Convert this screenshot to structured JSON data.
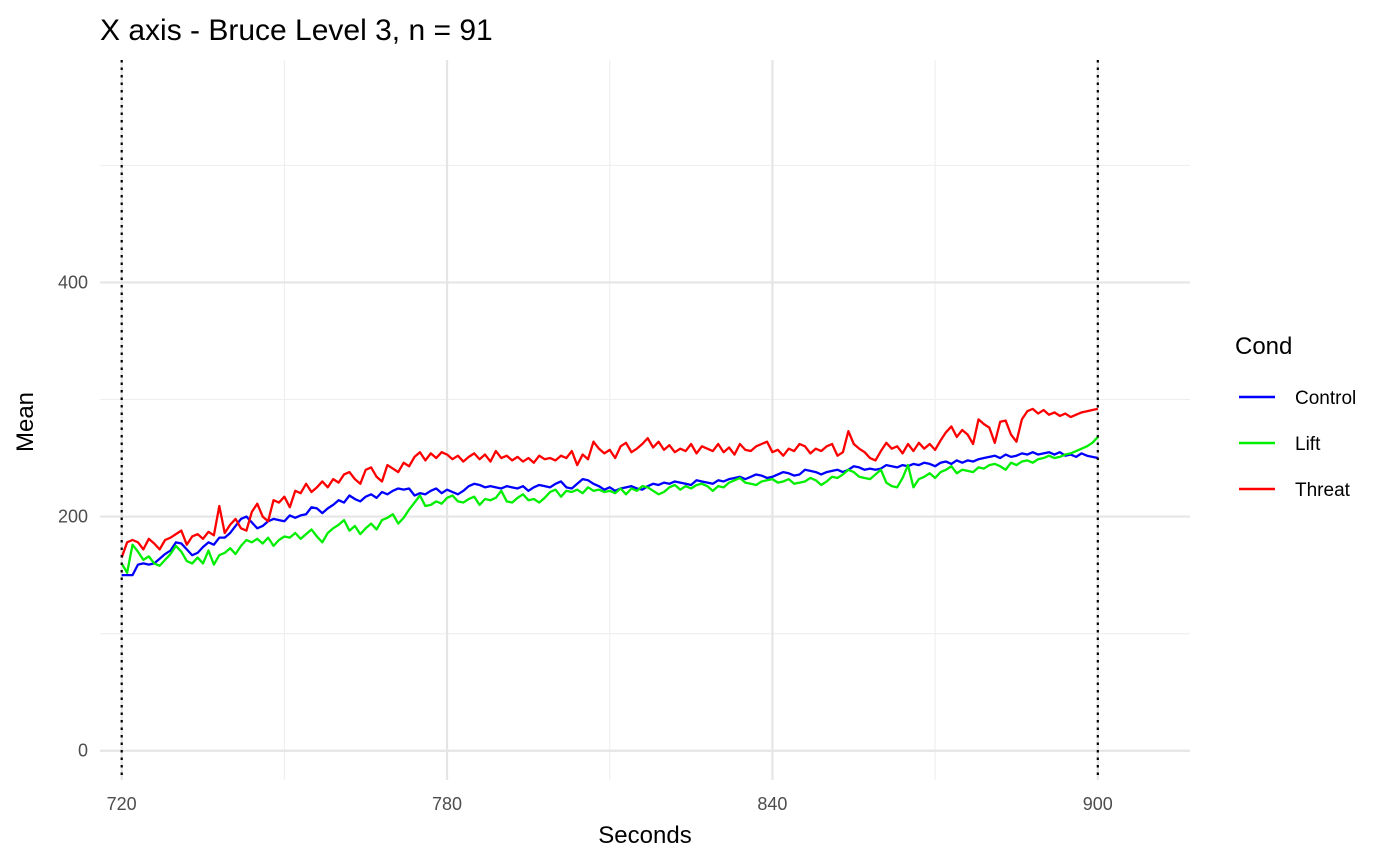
{
  "chart_data": {
    "type": "line",
    "title": "X axis - Bruce Level 3, n =  91",
    "xlabel": "Seconds",
    "ylabel": "Mean",
    "xlim": [
      716,
      917
    ],
    "ylim": [
      -25,
      590
    ],
    "x_ticks": [
      720,
      780,
      840,
      900
    ],
    "x_minor_ticks": [
      750,
      810,
      870
    ],
    "y_ticks": [
      0,
      200,
      400
    ],
    "y_minor_ticks": [
      100,
      300,
      500
    ],
    "grid": true,
    "vertical_reference_lines": [
      720,
      900
    ],
    "legend": {
      "title": "Cond",
      "position": "right"
    },
    "x_start": 720,
    "x_step": 1,
    "series": [
      {
        "name": "Control",
        "color": "#0000ff",
        "values": [
          150,
          150,
          150,
          159,
          160,
          159,
          160,
          164,
          168,
          171,
          178,
          177,
          172,
          167,
          169,
          174,
          178,
          176,
          182,
          182,
          186,
          192,
          198,
          200,
          195,
          190,
          192,
          196,
          198,
          197,
          196,
          201,
          199,
          201,
          202,
          208,
          207,
          203,
          207,
          210,
          214,
          212,
          218,
          215,
          213,
          217,
          219,
          216,
          221,
          219,
          222,
          224,
          223,
          224,
          218,
          220,
          219,
          222,
          224,
          220,
          223,
          221,
          219,
          222,
          226,
          228,
          227,
          225,
          226,
          225,
          224,
          226,
          225,
          224,
          226,
          222,
          225,
          227,
          226,
          225,
          228,
          230,
          225,
          224,
          228,
          232,
          231,
          228,
          226,
          223,
          225,
          222,
          224,
          225,
          226,
          224,
          223,
          226,
          228,
          227,
          229,
          228,
          230,
          229,
          228,
          227,
          231,
          230,
          229,
          228,
          231,
          230,
          232,
          233,
          234,
          232,
          234,
          236,
          235,
          233,
          234,
          236,
          238,
          237,
          235,
          236,
          240,
          239,
          238,
          236,
          238,
          239,
          240,
          238,
          240,
          243,
          242,
          240,
          241,
          240,
          241,
          244,
          243,
          242,
          244,
          243,
          245,
          244,
          246,
          245,
          243,
          246,
          247,
          245,
          248,
          246,
          248,
          247,
          249,
          250,
          251,
          252,
          250,
          253,
          251,
          252,
          254,
          253,
          255,
          253,
          254,
          255,
          253,
          255,
          252,
          253,
          251,
          254,
          252,
          251,
          250
        ]
      },
      {
        "name": "Lift",
        "color": "#00ee00",
        "values": [
          160,
          152,
          176,
          170,
          163,
          166,
          160,
          158,
          163,
          168,
          175,
          170,
          162,
          160,
          165,
          160,
          171,
          159,
          167,
          169,
          173,
          168,
          175,
          180,
          178,
          181,
          177,
          182,
          175,
          180,
          183,
          182,
          186,
          181,
          185,
          189,
          183,
          178,
          186,
          190,
          193,
          197,
          188,
          192,
          185,
          190,
          194,
          189,
          197,
          199,
          202,
          194,
          199,
          206,
          212,
          218,
          209,
          210,
          213,
          211,
          216,
          218,
          213,
          212,
          215,
          217,
          210,
          215,
          214,
          216,
          222,
          213,
          212,
          216,
          219,
          214,
          215,
          212,
          216,
          221,
          223,
          217,
          222,
          221,
          223,
          220,
          225,
          222,
          223,
          221,
          222,
          220,
          224,
          219,
          224,
          222,
          226,
          225,
          222,
          219,
          221,
          225,
          227,
          223,
          226,
          224,
          227,
          228,
          226,
          222,
          226,
          225,
          229,
          231,
          233,
          229,
          228,
          227,
          230,
          231,
          232,
          229,
          230,
          232,
          228,
          229,
          230,
          233,
          231,
          227,
          230,
          234,
          233,
          236,
          240,
          238,
          234,
          233,
          232,
          236,
          240,
          229,
          226,
          225,
          233,
          244,
          225,
          232,
          234,
          237,
          233,
          238,
          240,
          243,
          237,
          240,
          239,
          238,
          242,
          241,
          244,
          245,
          243,
          240,
          246,
          244,
          247,
          248,
          246,
          249,
          250,
          252,
          250,
          251,
          253,
          254,
          256,
          258,
          260,
          263,
          268
        ]
      },
      {
        "name": "Threat",
        "color": "#ff0000",
        "values": [
          165,
          178,
          180,
          178,
          172,
          181,
          177,
          172,
          180,
          182,
          185,
          188,
          176,
          183,
          185,
          181,
          187,
          184,
          209,
          186,
          193,
          198,
          190,
          188,
          204,
          211,
          200,
          196,
          214,
          212,
          217,
          208,
          222,
          220,
          228,
          221,
          225,
          230,
          225,
          232,
          229,
          236,
          238,
          232,
          228,
          240,
          242,
          234,
          230,
          244,
          241,
          238,
          246,
          243,
          251,
          255,
          248,
          254,
          250,
          255,
          253,
          249,
          252,
          247,
          251,
          254,
          249,
          253,
          247,
          256,
          250,
          252,
          248,
          251,
          247,
          250,
          246,
          252,
          249,
          250,
          248,
          252,
          250,
          256,
          244,
          253,
          249,
          264,
          258,
          254,
          257,
          250,
          260,
          263,
          255,
          258,
          262,
          267,
          259,
          264,
          257,
          261,
          255,
          258,
          256,
          262,
          254,
          260,
          258,
          256,
          262,
          255,
          259,
          253,
          262,
          257,
          256,
          260,
          262,
          264,
          255,
          257,
          252,
          258,
          256,
          262,
          260,
          254,
          258,
          256,
          260,
          262,
          252,
          255,
          273,
          262,
          258,
          255,
          250,
          248,
          256,
          263,
          258,
          260,
          254,
          262,
          256,
          263,
          258,
          262,
          257,
          265,
          272,
          277,
          268,
          274,
          270,
          262,
          283,
          279,
          276,
          263,
          281,
          282,
          270,
          264,
          283,
          290,
          292,
          288,
          291,
          287,
          289,
          286,
          288,
          285,
          287,
          289,
          290,
          291,
          292
        ]
      }
    ]
  }
}
